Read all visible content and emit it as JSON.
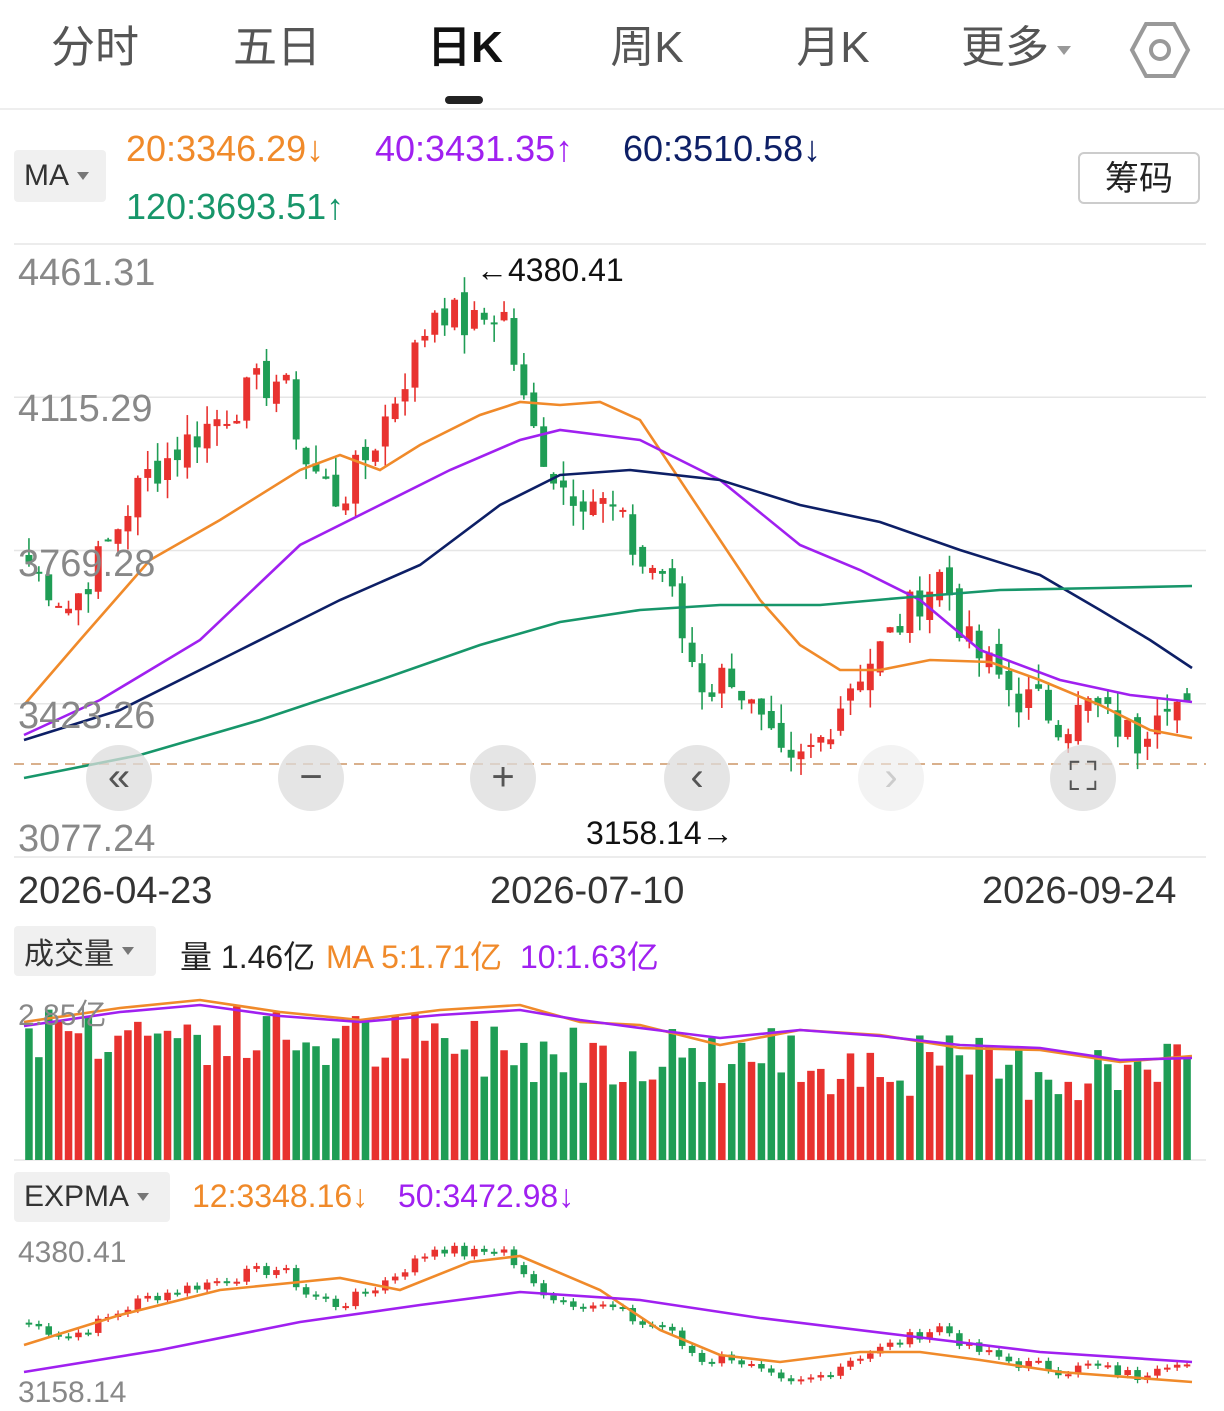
{
  "tabs": [
    {
      "label": "分时"
    },
    {
      "label": "五日"
    },
    {
      "label": "日K",
      "active": true
    },
    {
      "label": "周K"
    },
    {
      "label": "月K"
    },
    {
      "label": "更多"
    }
  ],
  "settings_icon": "hexagon-gear-icon",
  "indicator": {
    "name": "MA",
    "ma20": "20:3346.29↓",
    "ma40": "40:3431.35↑",
    "ma60": "60:3510.58↓",
    "ma120": "120:3693.51↑",
    "chouma_label": "筹码"
  },
  "y_axis_labels": [
    "4461.31",
    "4115.29",
    "3769.28",
    "3423.26",
    "3077.24"
  ],
  "x_axis_labels": [
    "2026-04-23",
    "2026-07-10",
    "2026-09-24"
  ],
  "high_annotation": "←4380.41",
  "low_annotation": "3158.14→",
  "controls": [
    "«",
    "−",
    "+",
    "‹",
    "›",
    "⛶"
  ],
  "volume": {
    "name": "成交量",
    "current": "量 1.46亿",
    "ma5": "MA 5:1.71亿",
    "ma10": "10:1.63亿",
    "max_label": "2.85亿"
  },
  "expma": {
    "name": "EXPMA",
    "ema12": "12:3348.16↓",
    "ema50": "50:3472.98↓",
    "top_label": "4380.41",
    "bottom_label": "3158.14"
  },
  "colors": {
    "up": "#e8322f",
    "down": "#1f9d55",
    "ma20": "#f08a2a",
    "ma40": "#a020f0",
    "ma60": "#0d1f66",
    "ma120": "#17966a"
  },
  "chart_data": {
    "type": "candlestick",
    "y_range": [
      3077.24,
      4461.31
    ],
    "x_start": "2026-04-23",
    "x_end": "2026-09-24",
    "period_high": 4380.41,
    "period_low": 3158.14,
    "last_close_approx": 3380,
    "ma_last": {
      "ma20": 3346.29,
      "ma40": 3431.35,
      "ma60": 3510.58,
      "ma120": 3693.51
    },
    "volume_unit": "亿",
    "volume_last": 1.46,
    "volume_ma5": 1.71,
    "volume_ma10": 1.63,
    "expma_last": {
      "ema12": 3348.16,
      "ema50": 3472.98
    }
  }
}
